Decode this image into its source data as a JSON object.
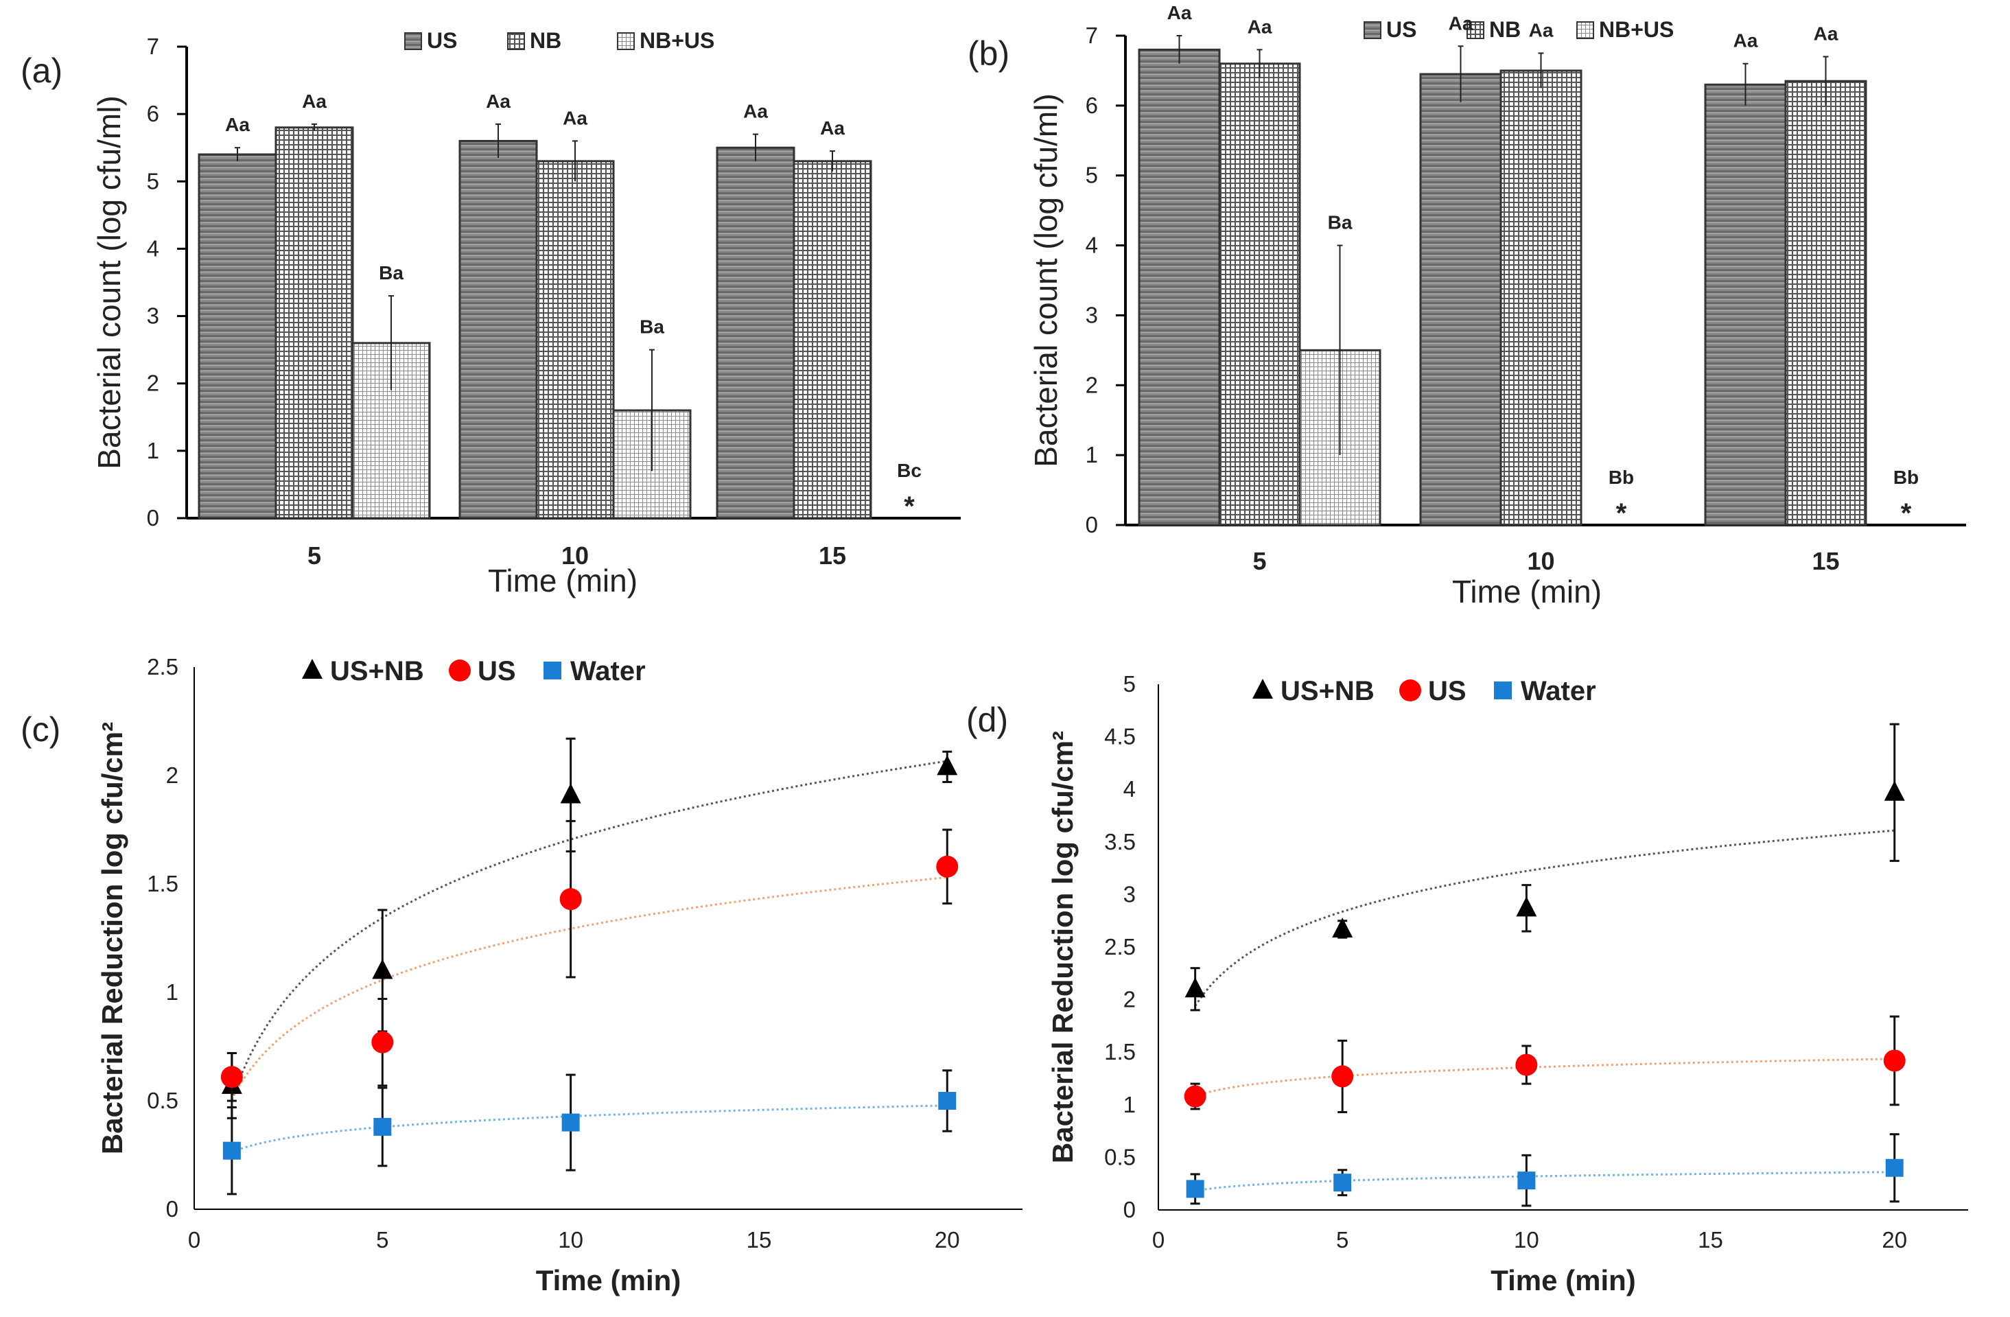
{
  "chart_data": [
    {
      "panel": "(a)",
      "type": "bar",
      "categories": [
        "5",
        "10",
        "15"
      ],
      "series": [
        {
          "name": "US",
          "values": [
            5.4,
            5.6,
            5.5
          ],
          "errors": [
            0.1,
            0.25,
            0.2
          ],
          "labels": [
            "Aa",
            "Aa",
            "Aa"
          ]
        },
        {
          "name": "NB",
          "values": [
            5.8,
            5.3,
            5.3
          ],
          "errors": [
            0.05,
            0.3,
            0.15
          ],
          "labels": [
            "Aa",
            "Aa",
            "Aa"
          ]
        },
        {
          "name": "NB+US",
          "values": [
            2.6,
            1.6,
            0
          ],
          "errors": [
            0.7,
            0.9,
            0
          ],
          "labels": [
            "Ba",
            "Ba",
            "Bc"
          ],
          "markers": [
            "",
            "",
            "*"
          ]
        }
      ],
      "xlabel": "Time (min)",
      "ylabel": "Bacterial count (log cfu/ml)",
      "ylim": [
        0,
        7
      ],
      "yticks": [
        0,
        1,
        2,
        3,
        4,
        5,
        6,
        7
      ]
    },
    {
      "panel": "(b)",
      "type": "bar",
      "categories": [
        "5",
        "10",
        "15"
      ],
      "series": [
        {
          "name": "US",
          "values": [
            6.8,
            6.45,
            6.3
          ],
          "errors": [
            0.2,
            0.4,
            0.3
          ],
          "labels": [
            "Aa",
            "Aa",
            "Aa"
          ]
        },
        {
          "name": "NB",
          "values": [
            6.6,
            6.5,
            6.35
          ],
          "errors": [
            0.2,
            0.25,
            0.35
          ],
          "labels": [
            "Aa",
            "Aa",
            "Aa"
          ]
        },
        {
          "name": "NB+US",
          "values": [
            2.5,
            0,
            0
          ],
          "errors": [
            1.5,
            0,
            0
          ],
          "labels": [
            "Ba",
            "Bb",
            "Bb"
          ],
          "markers": [
            "",
            "*",
            "*"
          ]
        }
      ],
      "xlabel": "Time (min)",
      "ylabel": "Bacterial count (log cfu/ml)",
      "ylim": [
        0,
        7
      ],
      "yticks": [
        0,
        1,
        2,
        3,
        4,
        5,
        6,
        7
      ]
    },
    {
      "panel": "(c)",
      "type": "scatter",
      "x": [
        1,
        5,
        10,
        20
      ],
      "series": [
        {
          "name": "US+NB",
          "marker": "triangle",
          "color": "#000000",
          "trend_color": "#555555",
          "values": [
            0.57,
            1.1,
            1.91,
            2.04
          ],
          "errors": [
            0.15,
            0.28,
            0.26,
            0.07
          ]
        },
        {
          "name": "US",
          "marker": "circle",
          "color": "#ff0000",
          "trend_color": "#f4a070",
          "values": [
            0.61,
            0.77,
            1.43,
            1.58
          ],
          "errors": [
            0.11,
            0.2,
            0.36,
            0.17
          ]
        },
        {
          "name": "Water",
          "marker": "square",
          "color": "#1a7fd4",
          "trend_color": "#6fb4e8",
          "values": [
            0.27,
            0.38,
            0.4,
            0.5
          ],
          "errors": [
            0.2,
            0.18,
            0.22,
            0.14
          ]
        }
      ],
      "trendline": "logarithmic",
      "xlabel": "Time (min)",
      "ylabel": "Bacterial Reduction log cfu/cm²",
      "xlim": [
        0,
        22
      ],
      "xticks": [
        0,
        5,
        10,
        15,
        20
      ],
      "ylim": [
        0,
        2.5
      ],
      "yticks": [
        "0",
        "0.5",
        "1",
        "1.5",
        "2",
        "2.5"
      ]
    },
    {
      "panel": "(d)",
      "type": "scatter",
      "x": [
        1,
        5,
        10,
        20
      ],
      "series": [
        {
          "name": "US+NB",
          "marker": "triangle",
          "color": "#000000",
          "trend_color": "#555555",
          "values": [
            2.1,
            2.67,
            2.87,
            3.97
          ],
          "errors": [
            0.2,
            0.08,
            0.22,
            0.65
          ]
        },
        {
          "name": "US",
          "marker": "circle",
          "color": "#ff0000",
          "trend_color": "#f4a070",
          "values": [
            1.08,
            1.27,
            1.38,
            1.42
          ],
          "errors": [
            0.12,
            0.34,
            0.18,
            0.42
          ]
        },
        {
          "name": "Water",
          "marker": "square",
          "color": "#1a7fd4",
          "trend_color": "#6fb4e8",
          "values": [
            0.2,
            0.26,
            0.28,
            0.4
          ],
          "errors": [
            0.14,
            0.12,
            0.24,
            0.32
          ]
        }
      ],
      "trendline": "logarithmic",
      "xlabel": "Time (min)",
      "ylabel": "Bacterial Reduction log cfu/cm²",
      "xlim": [
        0,
        22
      ],
      "xticks": [
        0,
        5,
        10,
        15,
        20
      ],
      "ylim": [
        0,
        5
      ],
      "yticks": [
        "0",
        "0.5",
        "1",
        "1.5",
        "2",
        "2.5",
        "3",
        "3.5",
        "4",
        "4.5",
        "5"
      ]
    }
  ]
}
